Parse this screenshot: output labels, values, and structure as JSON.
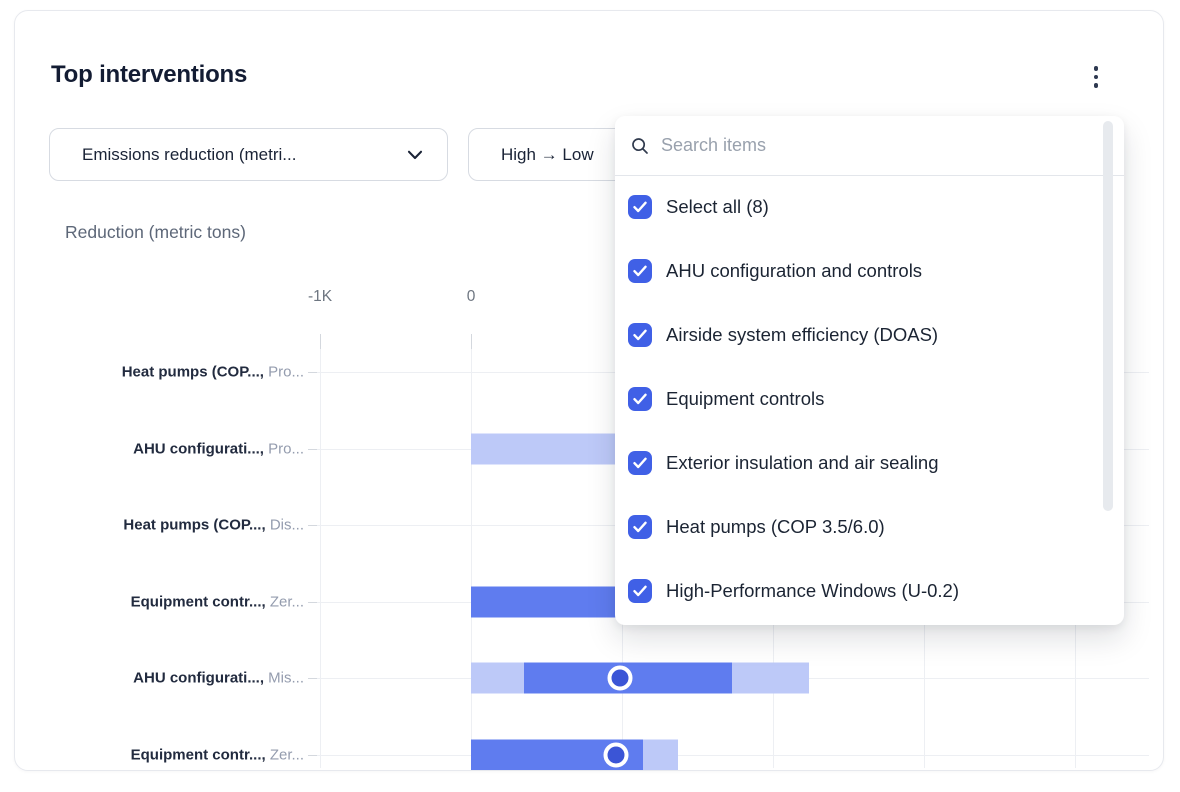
{
  "card": {
    "title": "Top interventions"
  },
  "filters": {
    "metric_dropdown": {
      "value": "Emissions reduction (metri..."
    },
    "sort_dropdown": {
      "value": "High → Low"
    }
  },
  "colors": {
    "accent_checkbox": "#4060e6",
    "bar_solid": "#5f7cef",
    "bar_muted": "#bdc9f8",
    "dot_fill": "#3b55d6"
  },
  "chart_data": {
    "type": "bar",
    "subtype": "horizontal-range-bars-with-dot-markers",
    "axis_title": "Reduction (metric tons)",
    "x_unit": "metric tons",
    "x_tick_labels": [
      {
        "k": -1,
        "label": "-1K"
      },
      {
        "k": 0,
        "label": "0"
      }
    ],
    "x_gridlines_k": [
      -1,
      0,
      1,
      2,
      3,
      4
    ],
    "grid": true,
    "rows": [
      {
        "label_primary": "Heat pumps (COP...,",
        "label_secondary": "Pro...",
        "segments": [],
        "dot": null
      },
      {
        "label_primary": "AHU configurati...,",
        "label_secondary": "Pro...",
        "segments": [
          {
            "type": "muted",
            "from": 0,
            "to": 1150,
            "obscured_by_panel": true
          }
        ],
        "dot": null
      },
      {
        "label_primary": "Heat pumps (COP...,",
        "label_secondary": "Dis...",
        "segments": [],
        "dot": null
      },
      {
        "label_primary": "Equipment contr...,",
        "label_secondary": "Zer...",
        "segments": [
          {
            "type": "solid",
            "from": 0,
            "to": 1150,
            "obscured_by_panel": true
          }
        ],
        "dot": null
      },
      {
        "label_primary": "AHU configurati...,",
        "label_secondary": "Mis...",
        "segments": [
          {
            "type": "muted",
            "from": 0,
            "to": 350
          },
          {
            "type": "solid",
            "from": 350,
            "to": 1730
          },
          {
            "type": "muted",
            "from": 1730,
            "to": 2240
          }
        ],
        "dot": 990
      },
      {
        "label_primary": "Equipment contr...,",
        "label_secondary": "Zer...",
        "segments": [
          {
            "type": "solid",
            "from": 0,
            "to": 1140
          },
          {
            "type": "muted",
            "from": 1140,
            "to": 1370
          }
        ],
        "dot": 960
      }
    ]
  },
  "dropdown_panel": {
    "search_placeholder": "Search items",
    "items": [
      {
        "label": "Select all (8)",
        "checked": true
      },
      {
        "label": "AHU configuration and controls",
        "checked": true
      },
      {
        "label": "Airside system efficiency (DOAS)",
        "checked": true
      },
      {
        "label": "Equipment controls",
        "checked": true
      },
      {
        "label": "Exterior insulation and air sealing",
        "checked": true
      },
      {
        "label": "Heat pumps (COP 3.5/6.0)",
        "checked": true
      },
      {
        "label": "High-Performance Windows (U-0.2)",
        "checked": true
      }
    ]
  }
}
